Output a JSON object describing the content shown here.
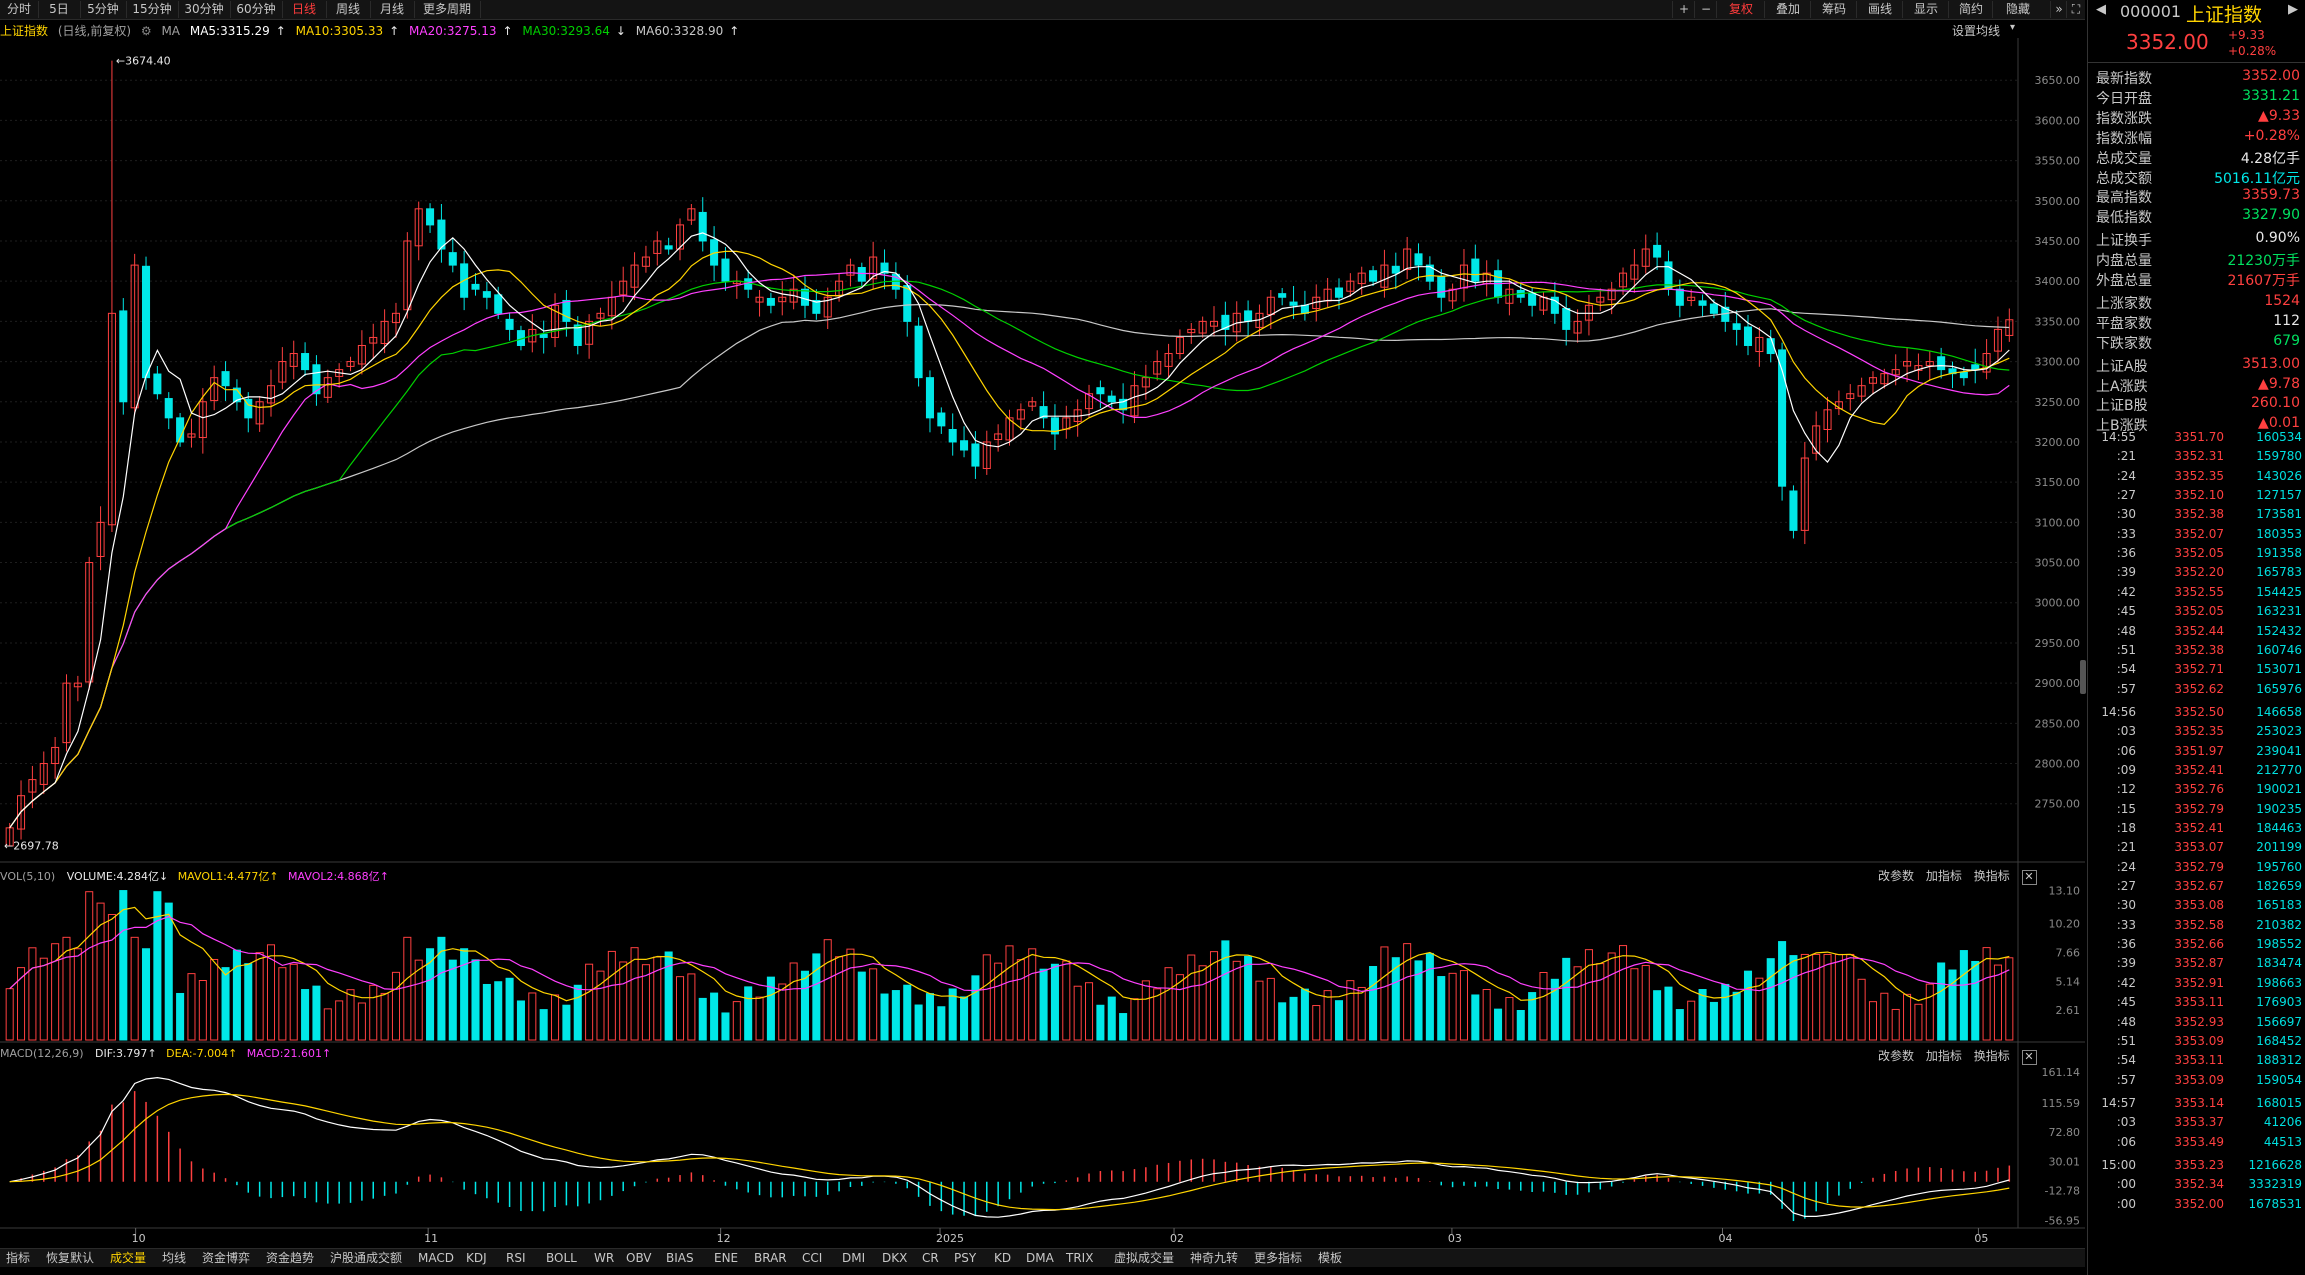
{
  "toolbar": {
    "periods": [
      "分时",
      "5日",
      "5分钟",
      "15分钟",
      "30分钟",
      "60分钟",
      "日线",
      "周线",
      "月线",
      "更多周期"
    ],
    "active_period": "日线",
    "right_buttons": [
      "复权",
      "叠加",
      "筹码",
      "画线",
      "显示",
      "简约",
      "隐藏"
    ],
    "active_right": "复权"
  },
  "info": {
    "index_name": "上证指数",
    "mode": "(日线,前复权)",
    "ma_label": "MA",
    "ma5": "MA5:3315.29",
    "ma10": "MA10:3305.33",
    "ma20": "MA20:3275.13",
    "ma30": "MA30:3293.64",
    "ma60": "MA60:3328.90",
    "settings": "设置均线"
  },
  "colors": {
    "up": "#ff4040",
    "down": "#00e8e8",
    "ma5": "#ffffff",
    "ma10": "#ffd400",
    "ma20": "#ff40ff",
    "ma30": "#00d000",
    "ma60": "#c8c8c8"
  },
  "price_axis": {
    "labels": [
      "3650.00",
      "3600.00",
      "3550.00",
      "3500.00",
      "3450.00",
      "3400.00",
      "3350.00",
      "3300.00",
      "3250.00",
      "3200.00",
      "3150.00",
      "3100.00",
      "3050.00",
      "3000.00",
      "2950.00",
      "2900.00",
      "2850.00",
      "2800.00",
      "2750.00"
    ],
    "max_label": "3674.40",
    "min_label": "2697.78"
  },
  "vol_panel": {
    "header": "VOL(5,10)",
    "volume": "VOLUME:4.284亿",
    "mavol1": "MAVOL1:4.477亿",
    "mavol2": "MAVOL2:4.868亿",
    "axis": [
      "13.10",
      "10.20",
      "7.66",
      "5.14",
      "2.61"
    ],
    "buttons": [
      "改参数",
      "加指标",
      "换指标"
    ]
  },
  "macd_panel": {
    "header": "MACD(12,26,9)",
    "dif": "DIF:3.797",
    "dea": "DEA:-7.004",
    "macd": "MACD:21.601",
    "axis": [
      "161.14",
      "115.59",
      "72.80",
      "30.01",
      "-12.78",
      "-56.95"
    ],
    "buttons": [
      "改参数",
      "加指标",
      "换指标"
    ]
  },
  "date_axis": [
    "10",
    "11",
    "12",
    "2025",
    "02",
    "03",
    "04",
    "05"
  ],
  "bottom_tabs": [
    "指标",
    "恢复默认",
    "成交量",
    "均线",
    "资金博弈",
    "资金趋势",
    "沪股通成交额",
    "MACD",
    "KDJ",
    "RSI",
    "BOLL",
    "WR",
    "OBV",
    "BIAS",
    "ENE",
    "BRAR",
    "CCI",
    "DMI",
    "DKX",
    "CR",
    "PSY",
    "KD",
    "DMA",
    "TRIX",
    "虚拟成交量",
    "神奇九转",
    "更多指标",
    "模板"
  ],
  "active_bottom": "成交量",
  "quote": {
    "code": "000001",
    "name": "上证指数",
    "price": "3352.00",
    "change": "+9.33",
    "change_pct": "+0.28%"
  },
  "stats": [
    {
      "label": "最新指数",
      "value": "3352.00",
      "color": "red"
    },
    {
      "label": "今日开盘",
      "value": "3331.21",
      "color": "green"
    },
    {
      "label": "指数涨跌",
      "value": "▲9.33",
      "color": "red"
    },
    {
      "label": "指数涨幅",
      "value": "+0.28%",
      "color": "red"
    },
    {
      "label": "总成交量",
      "value": "4.28亿手",
      "color": "white"
    },
    {
      "label": "总成交额",
      "value": "5016.11亿元",
      "color": "cyan"
    },
    {
      "label": "最高指数",
      "value": "3359.73",
      "color": "red"
    },
    {
      "label": "最低指数",
      "value": "3327.90",
      "color": "green"
    },
    {
      "label": "上证换手",
      "value": "0.90%",
      "color": "white"
    },
    {
      "label": "内盘总量",
      "value": "21230万手",
      "color": "green"
    },
    {
      "label": "外盘总量",
      "value": "21607万手",
      "color": "red"
    },
    {
      "label": "上涨家数",
      "value": "1524",
      "color": "red"
    },
    {
      "label": "平盘家数",
      "value": "112",
      "color": "white"
    },
    {
      "label": "下跌家数",
      "value": "679",
      "color": "green"
    },
    {
      "label": "上证A股",
      "value": "3513.00",
      "color": "red"
    },
    {
      "label": "上A涨跌",
      "value": "▲9.78",
      "color": "red"
    },
    {
      "label": "上证B股",
      "value": "260.10",
      "color": "red"
    },
    {
      "label": "上B涨跌",
      "value": "▲0.01",
      "color": "red"
    }
  ],
  "ticks": [
    {
      "t": "14:55",
      "p": "3351.70",
      "v": "160534"
    },
    {
      "t": ":21",
      "p": "3352.31",
      "v": "159780"
    },
    {
      "t": ":24",
      "p": "3352.35",
      "v": "143026"
    },
    {
      "t": ":27",
      "p": "3352.10",
      "v": "127157"
    },
    {
      "t": ":30",
      "p": "3352.38",
      "v": "173581"
    },
    {
      "t": ":33",
      "p": "3352.07",
      "v": "180353"
    },
    {
      "t": ":36",
      "p": "3352.05",
      "v": "191358"
    },
    {
      "t": ":39",
      "p": "3352.20",
      "v": "165783"
    },
    {
      "t": ":42",
      "p": "3352.55",
      "v": "154425"
    },
    {
      "t": ":45",
      "p": "3352.05",
      "v": "163231"
    },
    {
      "t": ":48",
      "p": "3352.44",
      "v": "152432"
    },
    {
      "t": ":51",
      "p": "3352.38",
      "v": "160746"
    },
    {
      "t": ":54",
      "p": "3352.71",
      "v": "153071"
    },
    {
      "t": ":57",
      "p": "3352.62",
      "v": "165976"
    },
    {
      "t": "14:56",
      "p": "3352.50",
      "v": "146658"
    },
    {
      "t": ":03",
      "p": "3352.35",
      "v": "253023"
    },
    {
      "t": ":06",
      "p": "3351.97",
      "v": "239041"
    },
    {
      "t": ":09",
      "p": "3352.41",
      "v": "212770"
    },
    {
      "t": ":12",
      "p": "3352.76",
      "v": "190021"
    },
    {
      "t": ":15",
      "p": "3352.79",
      "v": "190235"
    },
    {
      "t": ":18",
      "p": "3352.41",
      "v": "184463"
    },
    {
      "t": ":21",
      "p": "3353.07",
      "v": "201199"
    },
    {
      "t": ":24",
      "p": "3352.79",
      "v": "195760"
    },
    {
      "t": ":27",
      "p": "3352.67",
      "v": "182659"
    },
    {
      "t": ":30",
      "p": "3353.08",
      "v": "165183"
    },
    {
      "t": ":33",
      "p": "3352.58",
      "v": "210382"
    },
    {
      "t": ":36",
      "p": "3352.66",
      "v": "198552"
    },
    {
      "t": ":39",
      "p": "3352.87",
      "v": "183474"
    },
    {
      "t": ":42",
      "p": "3352.91",
      "v": "198663"
    },
    {
      "t": ":45",
      "p": "3353.11",
      "v": "176903"
    },
    {
      "t": ":48",
      "p": "3352.93",
      "v": "156697"
    },
    {
      "t": ":51",
      "p": "3353.09",
      "v": "168452"
    },
    {
      "t": ":54",
      "p": "3353.11",
      "v": "188312"
    },
    {
      "t": ":57",
      "p": "3353.09",
      "v": "159054"
    },
    {
      "t": "14:57",
      "p": "3353.14",
      "v": "168015"
    },
    {
      "t": ":03",
      "p": "3353.37",
      "v": "41206"
    },
    {
      "t": ":06",
      "p": "3353.49",
      "v": "44513"
    },
    {
      "t": "15:00",
      "p": "3353.23",
      "v": "1216628"
    },
    {
      "t": ":00",
      "p": "3352.34",
      "v": "3332319"
    },
    {
      "t": ":00",
      "p": "3352.00",
      "v": "1678531"
    }
  ],
  "chart_data": {
    "type": "candlestick",
    "series_closes": [
      2720,
      2760,
      2780,
      2800,
      2820,
      2900,
      2900,
      3050,
      3100,
      3360,
      3250,
      3420,
      3280,
      3260,
      3230,
      3200,
      3210,
      3250,
      3280,
      3270,
      3250,
      3230,
      3250,
      3270,
      3300,
      3310,
      3290,
      3260,
      3280,
      3290,
      3300,
      3320,
      3330,
      3350,
      3360,
      3450,
      3490,
      3470,
      3440,
      3420,
      3380,
      3390,
      3380,
      3360,
      3340,
      3320,
      3340,
      3330,
      3370,
      3350,
      3320,
      3350,
      3360,
      3380,
      3400,
      3420,
      3430,
      3450,
      3440,
      3470,
      3490,
      3450,
      3420,
      3400,
      3400,
      3390,
      3380,
      3370,
      3380,
      3390,
      3370,
      3360,
      3380,
      3400,
      3420,
      3400,
      3430,
      3410,
      3390,
      3350,
      3280,
      3230,
      3220,
      3200,
      3190,
      3170,
      3200,
      3210,
      3230,
      3240,
      3250,
      3230,
      3210,
      3230,
      3240,
      3260,
      3260,
      3250,
      3240,
      3270,
      3280,
      3300,
      3310,
      3330,
      3340,
      3350,
      3350,
      3340,
      3360,
      3350,
      3360,
      3380,
      3380,
      3370,
      3360,
      3380,
      3390,
      3380,
      3400,
      3410,
      3400,
      3420,
      3410,
      3440,
      3420,
      3400,
      3380,
      3390,
      3420,
      3400,
      3410,
      3380,
      3390,
      3380,
      3370,
      3380,
      3360,
      3340,
      3350,
      3370,
      3380,
      3390,
      3410,
      3420,
      3440,
      3430,
      3390,
      3370,
      3380,
      3370,
      3360,
      3350,
      3340,
      3320,
      3330,
      3310,
      3145,
      3090,
      3180,
      3220,
      3240,
      3250,
      3260,
      3270,
      3280,
      3285,
      3290,
      3300,
      3295,
      3300,
      3290,
      3285,
      3280,
      3290,
      3310,
      3340,
      3352
    ]
  }
}
